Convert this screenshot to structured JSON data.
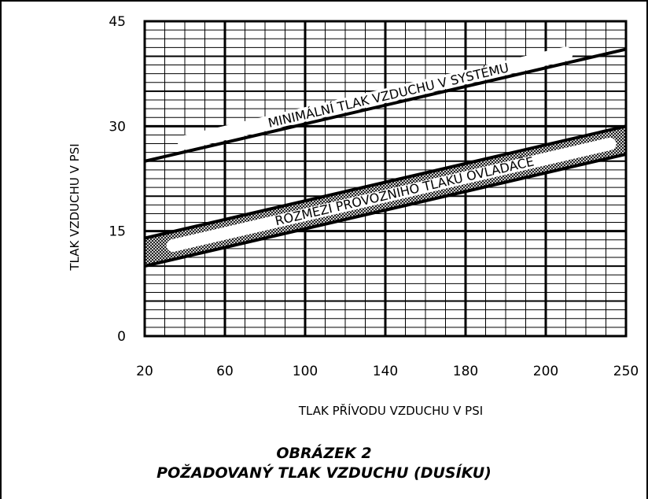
{
  "chart_data": {
    "type": "line",
    "xlabel": "TLAK PŘÍVODU VZDUCHU V PSI",
    "ylabel": "TLAK VZDUCHU V PSI",
    "x_tick_labels": [
      "20",
      "60",
      "100",
      "140",
      "180",
      "200",
      "250"
    ],
    "y_tick_labels": [
      "0",
      "15",
      "30",
      "45"
    ],
    "xlim_positions": [
      0,
      6
    ],
    "ylim": [
      0,
      45
    ],
    "grid": true,
    "series": [
      {
        "name": "MINIMÁLNÍ TLAK VZDUCHU V SYSTÉMU",
        "x_pos": [
          0,
          6
        ],
        "y": [
          25,
          41
        ]
      }
    ],
    "band": {
      "name": "ROZMEZÍ PROVOZNÍHO TLAKU OVLADAČE",
      "x_pos": [
        0,
        6
      ],
      "lower": [
        10,
        26
      ],
      "upper": [
        14,
        30
      ]
    }
  },
  "figure": {
    "number": "OBRÁZEK 2",
    "title": "POŽADOVANÝ TLAK VZDUCHU (DUSÍKU)"
  },
  "colors": {
    "line": "#000000",
    "band_fill": "#9a9a9a",
    "background": "#ffffff"
  }
}
